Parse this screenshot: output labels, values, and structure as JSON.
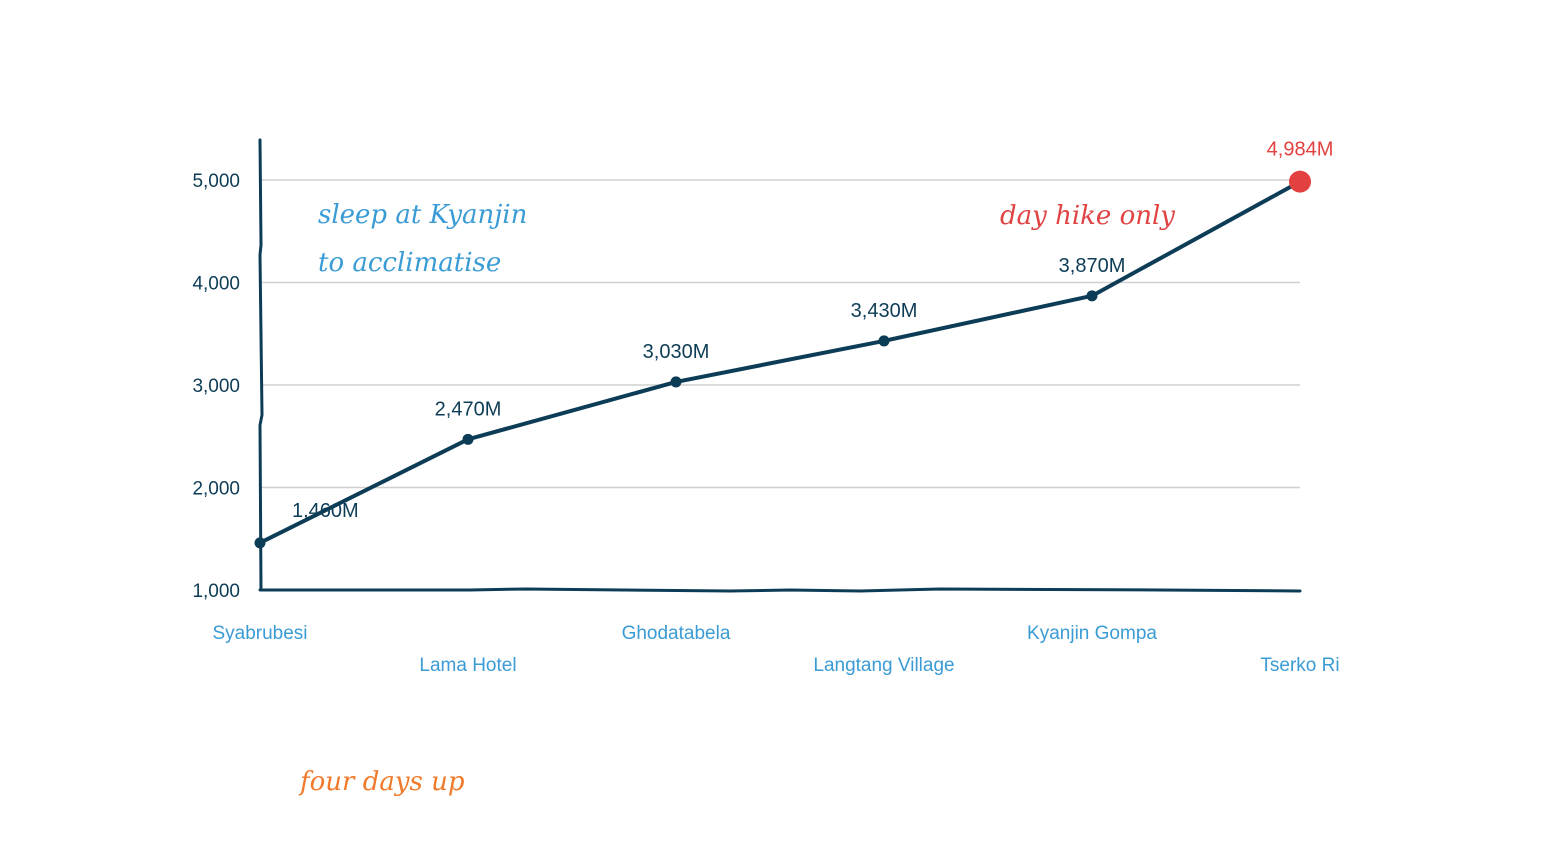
{
  "chart_data": {
    "type": "line",
    "title": "",
    "xlabel": "",
    "ylabel": "",
    "ylim": [
      1000,
      5000
    ],
    "yticks": [
      1000,
      2000,
      3000,
      4000,
      5000
    ],
    "ytick_labels": [
      "1,000",
      "2,000",
      "3,000",
      "4,000",
      "5,000"
    ],
    "grid": true,
    "categories": [
      "Syabrubesi",
      "Lama Hotel",
      "Ghodatabela",
      "Langtang Village",
      "Kyanjin Gompa",
      "Tserko Ri"
    ],
    "series": [
      {
        "values": [
          1460,
          2470,
          3030,
          3430,
          3870,
          4984
        ],
        "labels": [
          "1,460M",
          "2,470M",
          "3,030M",
          "3,430M",
          "3,870M",
          "4,984M"
        ]
      }
    ],
    "highlight_index": 5,
    "annotations": [
      {
        "lines": [
          "sleep at Kyanjin",
          "to acclimatise"
        ],
        "color": "#3a9bd5"
      },
      {
        "lines": [
          "day hike only"
        ],
        "color": "#e04343"
      },
      {
        "lines": [
          "four days up"
        ],
        "color": "#f07a2a"
      }
    ]
  },
  "colors": {
    "line": "#0d3d56",
    "highlight": "#e34040",
    "category_label": "#3a9bd5",
    "grid": "#d0d0d0",
    "axis_text": "#0d3d56"
  }
}
